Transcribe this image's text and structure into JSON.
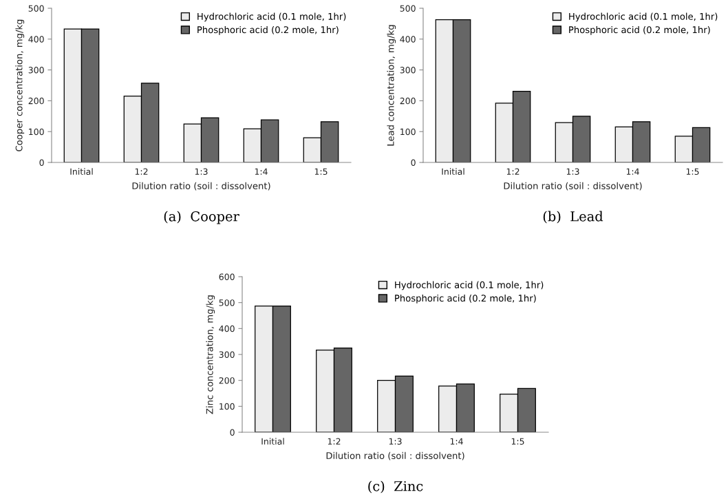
{
  "chart_data": [
    {
      "type": "bar",
      "title": "(a)  Cooper",
      "xlabel": "Dilution ratio (soil : dissolvent)",
      "ylabel": "Cooper concentration, mg/kg",
      "categories": [
        "Initial",
        "1:2",
        "1:3",
        "1:4",
        "1:5"
      ],
      "series": [
        {
          "name": "Hydrochloric acid (0.1 mole, 1hr)",
          "color": "#ececec",
          "values": [
            433,
            215,
            125,
            109,
            80
          ]
        },
        {
          "name": "Phosphoric acid (0.2 mole, 1hr)",
          "color": "#666666",
          "values": [
            433,
            257,
            145,
            138,
            132
          ]
        }
      ],
      "ylim": [
        0,
        500
      ],
      "yticks": [
        0,
        100,
        200,
        300,
        400,
        500
      ],
      "grid": false,
      "legend": "top right"
    },
    {
      "type": "bar",
      "title": "(b)  Lead",
      "xlabel": "Dilution ratio (soil : dissolvent)",
      "ylabel": "Lead concentration, mg/kg",
      "categories": [
        "Initial",
        "1:2",
        "1:3",
        "1:4",
        "1:5"
      ],
      "series": [
        {
          "name": "Hydrochloric acid (0.1 mole, 1hr)",
          "color": "#ececec",
          "values": [
            463,
            192,
            129,
            115,
            85
          ]
        },
        {
          "name": "Phosphoric acid (0.2 mole, 1hr)",
          "color": "#666666",
          "values": [
            463,
            231,
            150,
            132,
            113
          ]
        }
      ],
      "ylim": [
        0,
        500
      ],
      "yticks": [
        0,
        100,
        200,
        300,
        400,
        500
      ],
      "grid": false,
      "legend": "top right"
    },
    {
      "type": "bar",
      "title": "(c)  Zinc",
      "xlabel": "Dilution ratio (soil : dissolvent)",
      "ylabel": "Zinc concentration, mg/kg",
      "categories": [
        "Initial",
        "1:2",
        "1:3",
        "1:4",
        "1:5"
      ],
      "series": [
        {
          "name": "Hydrochloric acid (0.1 mole, 1hr)",
          "color": "#ececec",
          "values": [
            487,
            317,
            200,
            178,
            147
          ]
        },
        {
          "name": "Phosphoric acid (0.2 mole, 1hr)",
          "color": "#666666",
          "values": [
            487,
            325,
            217,
            186,
            169
          ]
        }
      ],
      "ylim": [
        0,
        600
      ],
      "yticks": [
        0,
        100,
        200,
        300,
        400,
        500,
        600
      ],
      "grid": false,
      "legend": "top right"
    }
  ]
}
